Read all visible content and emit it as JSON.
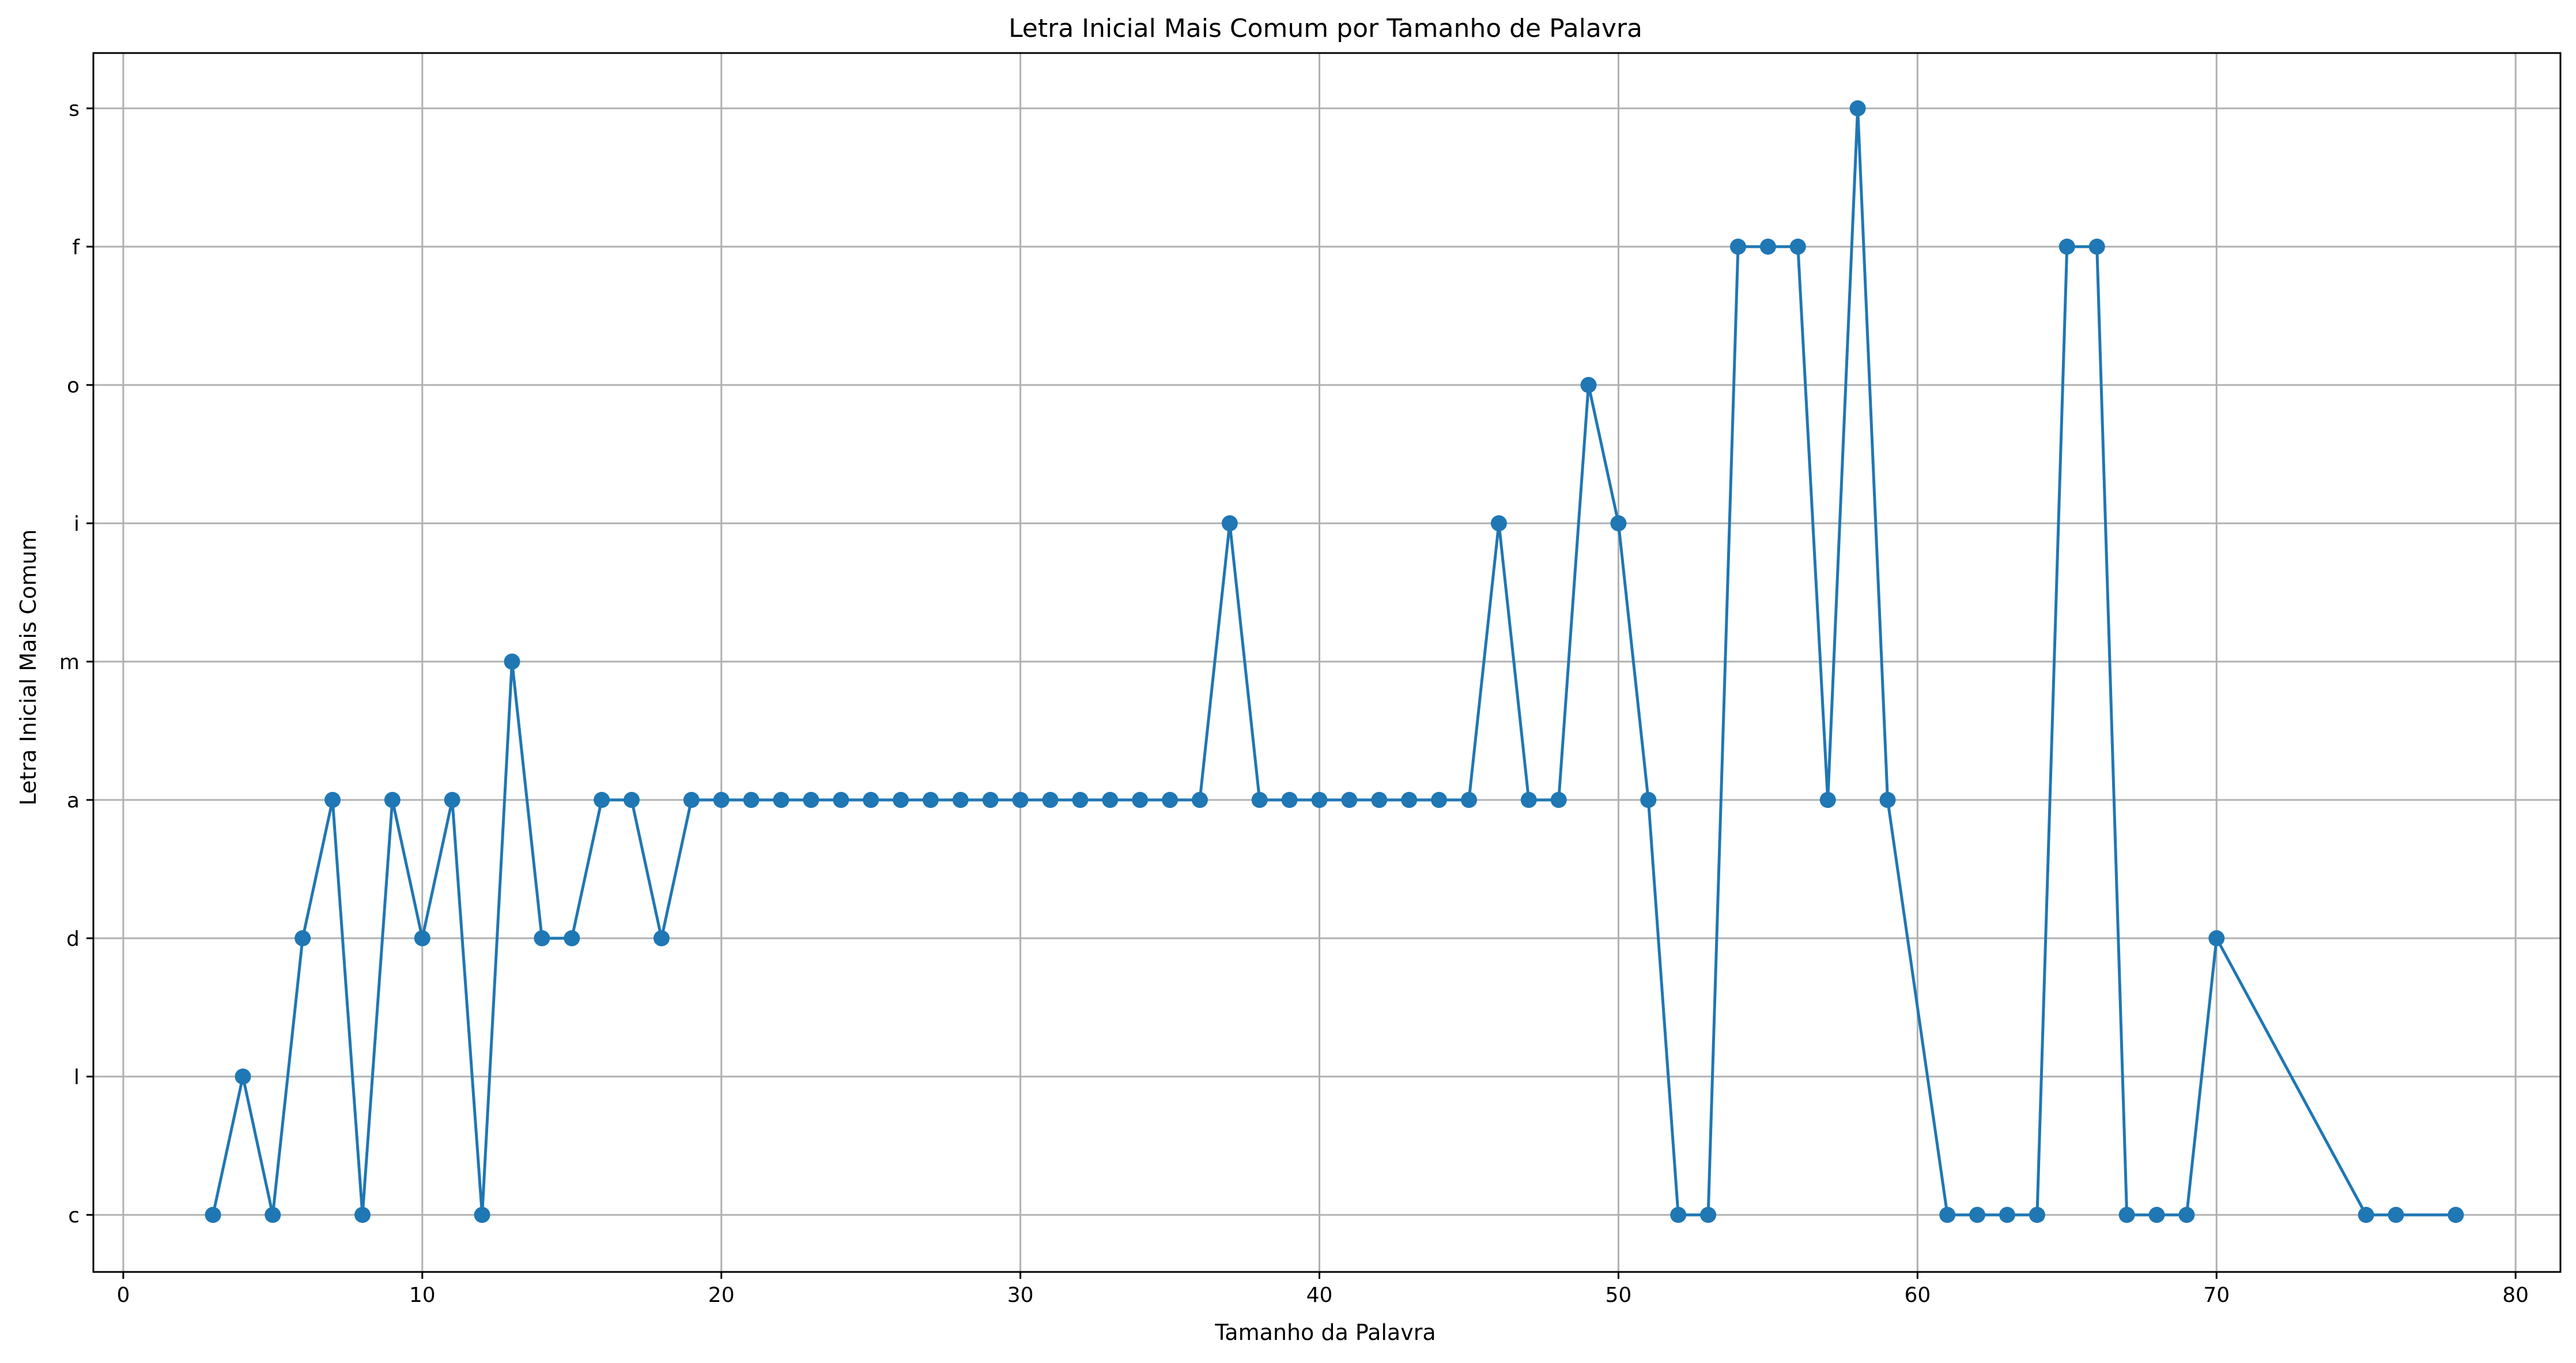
{
  "chart_data": {
    "type": "line",
    "title": "Letra Inicial Mais Comum por Tamanho de Palavra",
    "xlabel": "Tamanho da Palavra",
    "ylabel": "Letra Inicial Mais Comum",
    "xlim": [
      -1,
      81.5
    ],
    "x_ticks": [
      0,
      10,
      20,
      30,
      40,
      50,
      60,
      70,
      80
    ],
    "y_categories": [
      "c",
      "l",
      "d",
      "a",
      "m",
      "i",
      "o",
      "f",
      "s"
    ],
    "grid": true,
    "marker": "circle",
    "color": "#1f77b4",
    "series": [
      {
        "x": [
          3,
          4,
          5,
          6,
          7,
          8,
          9,
          10,
          11,
          12,
          13,
          14,
          15,
          16,
          17,
          18,
          19,
          20,
          21,
          22,
          23,
          24,
          25,
          26,
          27,
          28,
          29,
          30,
          31,
          32,
          33,
          34,
          35,
          36,
          37,
          38,
          39,
          40,
          41,
          42,
          43,
          44,
          45,
          46,
          47,
          48,
          49,
          50,
          51,
          52,
          53,
          54,
          55,
          56,
          57,
          58,
          59,
          61,
          62,
          63,
          64,
          65,
          66,
          67,
          68,
          69,
          70,
          75,
          76,
          78
        ],
        "y": [
          "c",
          "l",
          "c",
          "d",
          "a",
          "c",
          "a",
          "d",
          "a",
          "c",
          "m",
          "d",
          "d",
          "a",
          "a",
          "d",
          "a",
          "a",
          "a",
          "a",
          "a",
          "a",
          "a",
          "a",
          "a",
          "a",
          "a",
          "a",
          "a",
          "a",
          "a",
          "a",
          "a",
          "a",
          "i",
          "a",
          "a",
          "a",
          "a",
          "a",
          "a",
          "a",
          "a",
          "i",
          "a",
          "a",
          "o",
          "i",
          "a",
          "c",
          "c",
          "f",
          "f",
          "f",
          "a",
          "s",
          "a",
          "c",
          "c",
          "c",
          "c",
          "f",
          "f",
          "c",
          "c",
          "c",
          "d",
          "c",
          "c",
          "c"
        ]
      }
    ]
  }
}
